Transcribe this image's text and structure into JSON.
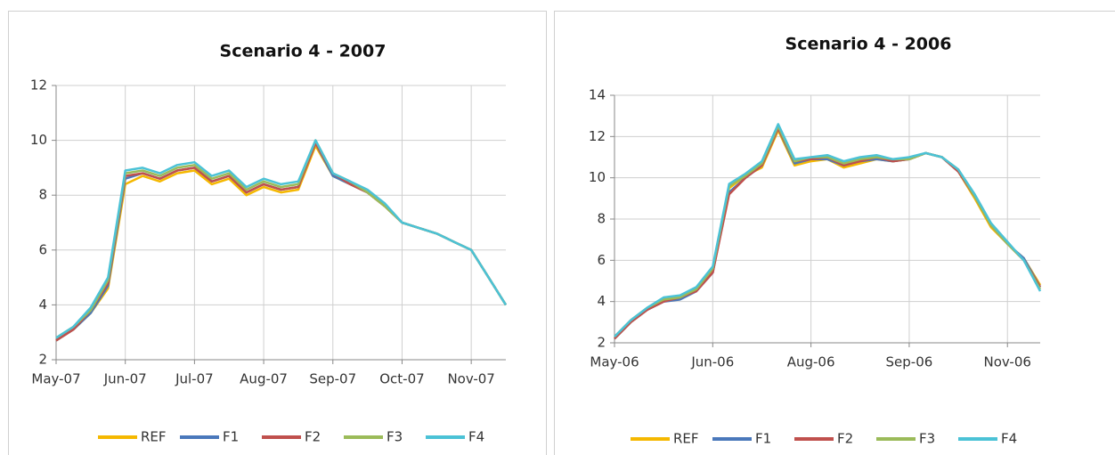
{
  "chart_data": [
    {
      "type": "line",
      "title": "Scenario 4  - 2007",
      "legend": "bottom",
      "grid": true,
      "categories": [
        "May-07",
        null,
        null,
        null,
        "Jun-07",
        null,
        null,
        null,
        "Jul-07",
        null,
        null,
        null,
        "Aug-07",
        null,
        null,
        null,
        "Sep-07",
        null,
        null,
        null,
        "Oct-07",
        null,
        null,
        null,
        "Nov-07",
        null,
        null
      ],
      "ylim": [
        2,
        12
      ],
      "yticks": [
        2,
        4,
        6,
        8,
        10,
        12
      ],
      "series": [
        {
          "name": "REF",
          "color": "#f5b800",
          "values": [
            2.7,
            3.1,
            3.7,
            4.6,
            8.4,
            8.7,
            8.5,
            8.8,
            8.9,
            8.4,
            8.6,
            8.0,
            8.3,
            8.1,
            8.2,
            9.8,
            8.7,
            8.4,
            8.1,
            7.6,
            7.0,
            6.8,
            6.6,
            6.3,
            6.0,
            5.0,
            4.0
          ]
        },
        {
          "name": "F1",
          "color": "#4a78bb",
          "values": [
            2.7,
            3.1,
            3.7,
            4.7,
            8.6,
            8.8,
            8.6,
            8.9,
            9.0,
            8.5,
            8.7,
            8.1,
            8.4,
            8.2,
            8.3,
            9.9,
            8.7,
            8.4,
            8.1,
            7.6,
            7.0,
            6.8,
            6.6,
            6.3,
            6.0,
            5.0,
            4.0
          ]
        },
        {
          "name": "F2",
          "color": "#c0504d",
          "values": [
            2.7,
            3.1,
            3.8,
            4.8,
            8.7,
            8.8,
            8.6,
            8.9,
            9.0,
            8.5,
            8.7,
            8.1,
            8.4,
            8.2,
            8.3,
            9.9,
            8.8,
            8.4,
            8.1,
            7.6,
            7.0,
            6.8,
            6.6,
            6.3,
            6.0,
            5.0,
            4.0
          ]
        },
        {
          "name": "F3",
          "color": "#9bbb59",
          "values": [
            2.8,
            3.2,
            3.8,
            4.9,
            8.8,
            8.9,
            8.7,
            9.0,
            9.1,
            8.6,
            8.8,
            8.2,
            8.5,
            8.3,
            8.4,
            10.0,
            8.8,
            8.5,
            8.1,
            7.6,
            7.0,
            6.8,
            6.6,
            6.3,
            6.0,
            5.0,
            4.0
          ]
        },
        {
          "name": "F4",
          "color": "#4bc2d6",
          "values": [
            2.8,
            3.2,
            3.9,
            5.0,
            8.9,
            9.0,
            8.8,
            9.1,
            9.2,
            8.7,
            8.9,
            8.3,
            8.6,
            8.4,
            8.5,
            10.0,
            8.8,
            8.5,
            8.2,
            7.7,
            7.0,
            6.8,
            6.6,
            6.3,
            6.0,
            5.0,
            4.0
          ]
        }
      ]
    },
    {
      "type": "line",
      "title": "Scenario 4 - 2006",
      "legend": "bottom",
      "grid": true,
      "categories": [
        "May-06",
        null,
        null,
        null,
        null,
        null,
        "Jun-06",
        null,
        null,
        null,
        null,
        null,
        "Aug-06",
        null,
        null,
        null,
        null,
        null,
        "Sep-06",
        null,
        null,
        null,
        null,
        null,
        "Nov-06",
        null,
        null
      ],
      "ylim": [
        2,
        14
      ],
      "yticks": [
        2,
        4,
        6,
        8,
        10,
        12,
        14
      ],
      "series": [
        {
          "name": "REF",
          "color": "#f5b800",
          "values": [
            2.2,
            3.0,
            3.6,
            4.1,
            4.2,
            4.6,
            5.5,
            9.5,
            10.1,
            10.5,
            12.3,
            10.6,
            10.8,
            10.9,
            10.5,
            10.7,
            10.9,
            10.8,
            10.9,
            11.2,
            11.0,
            10.3,
            9.0,
            7.6,
            6.8,
            6.1,
            4.8
          ]
        },
        {
          "name": "F1",
          "color": "#4a78bb",
          "values": [
            2.2,
            3.0,
            3.6,
            4.0,
            4.1,
            4.5,
            5.4,
            9.3,
            10.0,
            10.6,
            12.4,
            10.7,
            10.9,
            10.9,
            10.6,
            10.8,
            10.9,
            10.8,
            10.9,
            11.2,
            11.0,
            10.3,
            9.1,
            7.7,
            6.8,
            6.1,
            4.7
          ]
        },
        {
          "name": "F2",
          "color": "#c0504d",
          "values": [
            2.2,
            3.0,
            3.6,
            4.0,
            4.2,
            4.5,
            5.4,
            9.2,
            10.0,
            10.6,
            12.4,
            10.8,
            10.9,
            11.0,
            10.6,
            10.8,
            11.0,
            10.8,
            10.9,
            11.2,
            11.0,
            10.3,
            9.1,
            7.7,
            6.8,
            6.0,
            4.7
          ]
        },
        {
          "name": "F3",
          "color": "#9bbb59",
          "values": [
            2.3,
            3.1,
            3.7,
            4.1,
            4.2,
            4.6,
            5.6,
            9.6,
            10.1,
            10.7,
            12.5,
            10.8,
            11.0,
            11.0,
            10.7,
            10.9,
            11.0,
            10.9,
            10.9,
            11.2,
            11.0,
            10.4,
            9.1,
            7.7,
            6.8,
            6.0,
            4.6
          ]
        },
        {
          "name": "F4",
          "color": "#4bc2d6",
          "values": [
            2.3,
            3.1,
            3.7,
            4.2,
            4.3,
            4.7,
            5.7,
            9.7,
            10.2,
            10.8,
            12.6,
            10.9,
            11.0,
            11.1,
            10.8,
            11.0,
            11.1,
            10.9,
            11.0,
            11.2,
            11.0,
            10.4,
            9.2,
            7.8,
            6.9,
            6.0,
            4.5
          ]
        }
      ]
    }
  ]
}
